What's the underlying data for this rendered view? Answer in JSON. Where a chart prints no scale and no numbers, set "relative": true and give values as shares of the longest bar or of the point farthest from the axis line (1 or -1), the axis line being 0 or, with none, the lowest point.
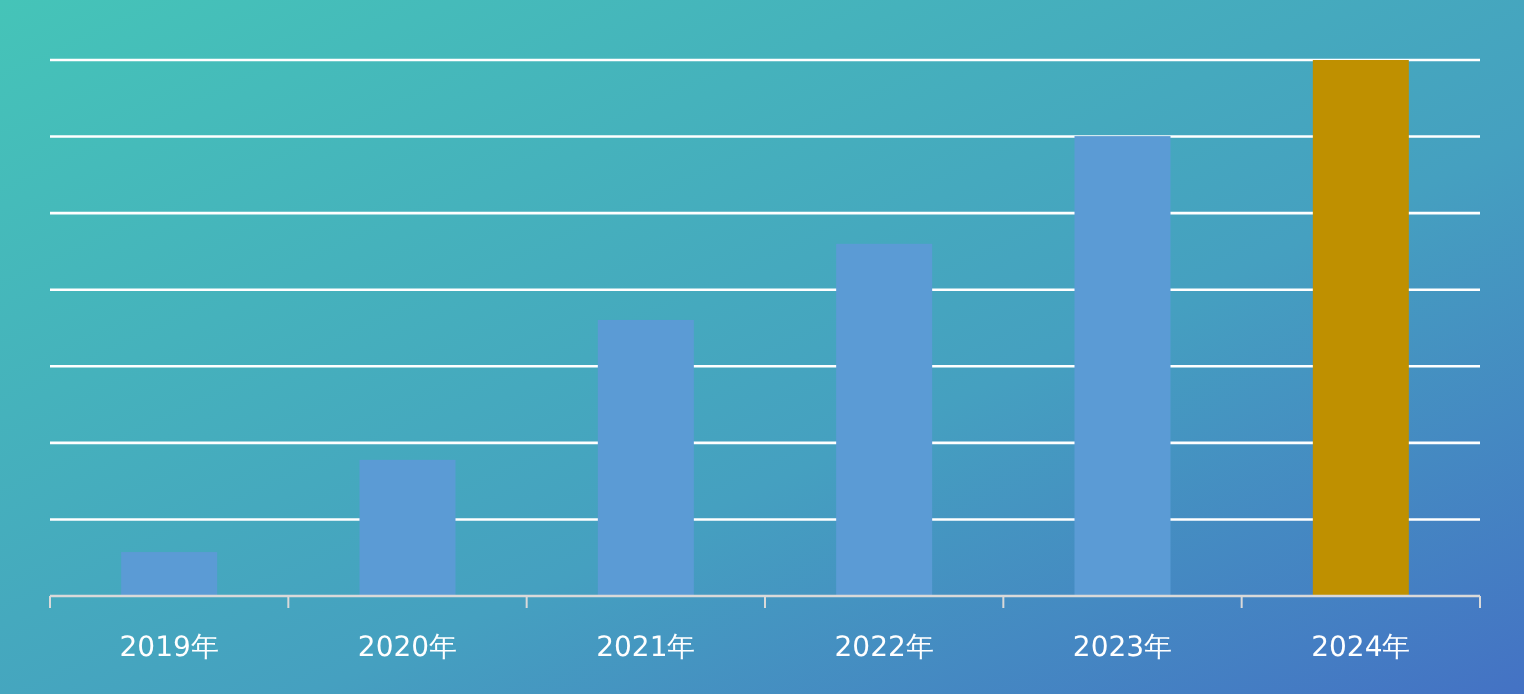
{
  "chart_data": {
    "type": "bar",
    "relative": true,
    "grid": "y",
    "categories": [
      "2019年",
      "2020年",
      "2021年",
      "2022年",
      "2023年",
      "2024年"
    ],
    "values": [
      0.082,
      0.254,
      0.515,
      0.657,
      0.858,
      1
    ],
    "colors": [
      "#5b9bd5",
      "#5b9bd5",
      "#5b9bd5",
      "#5b9bd5",
      "#5b9bd5",
      "#bf9000"
    ]
  }
}
